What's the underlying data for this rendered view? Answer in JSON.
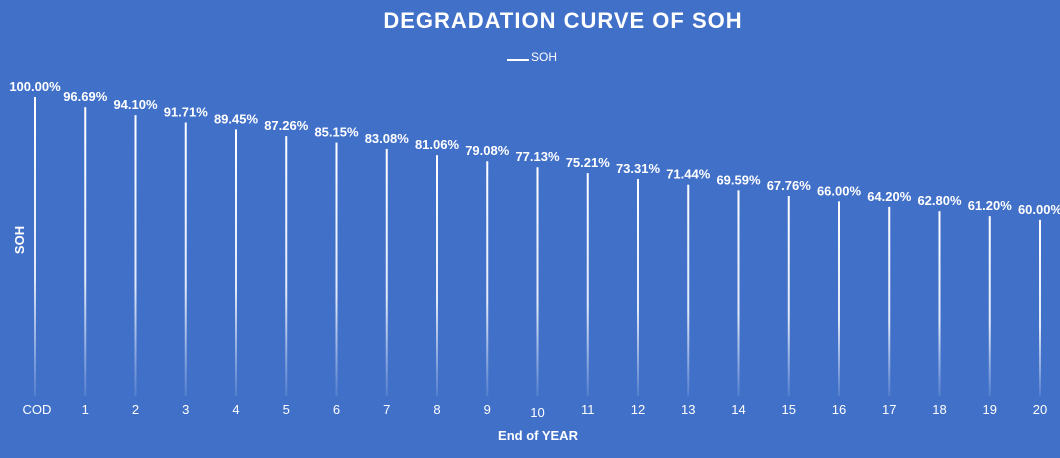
{
  "chart_data": {
    "type": "bar",
    "title": "DEGRADATION CURVE OF SOH",
    "xlabel": "End of YEAR",
    "ylabel": "SOH",
    "legend": {
      "entries": [
        "SOH"
      ],
      "placement": "top"
    },
    "ylim": [
      0,
      100
    ],
    "grid": false,
    "categories": [
      "COD",
      "1",
      "2",
      "3",
      "4",
      "5",
      "6",
      "7",
      "8",
      "9",
      "10",
      "11",
      "12",
      "13",
      "14",
      "15",
      "16",
      "17",
      "18",
      "19",
      "20"
    ],
    "series": [
      {
        "name": "SOH",
        "values": [
          100.0,
          96.69,
          94.1,
          91.71,
          89.45,
          87.26,
          85.15,
          83.08,
          81.06,
          79.08,
          77.13,
          75.21,
          73.31,
          71.44,
          69.59,
          67.76,
          66.0,
          64.2,
          62.8,
          61.2,
          60.0
        ],
        "labels": [
          "100.00%",
          "96.69%",
          "94.10%",
          "91.71%",
          "89.45%",
          "87.26%",
          "85.15%",
          "83.08%",
          "81.06%",
          "79.08%",
          "77.13%",
          "75.21%",
          "73.31%",
          "71.44%",
          "69.59%",
          "67.76%",
          "66.00%",
          "64.20%",
          "62.80%",
          "61.20%",
          "60.00%"
        ]
      }
    ],
    "colors": {
      "background": "#4170c9",
      "bar": "#ffffff"
    }
  }
}
